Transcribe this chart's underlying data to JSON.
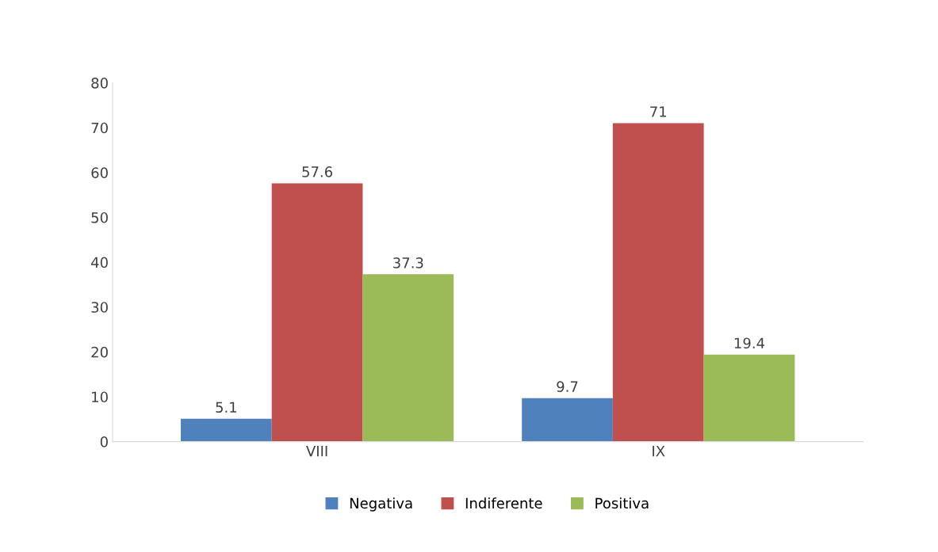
{
  "chart_data": {
    "type": "bar",
    "categories": [
      "VIII",
      "IX"
    ],
    "series": [
      {
        "name": "Negativa",
        "color": "#4f81bd",
        "values": [
          5.1,
          9.7
        ]
      },
      {
        "name": "Indiferente",
        "color": "#c0504d",
        "values": [
          57.6,
          71
        ]
      },
      {
        "name": "Positiva",
        "color": "#9bbb59",
        "values": [
          37.3,
          19.4
        ]
      }
    ],
    "ylim": [
      0,
      80
    ],
    "yticks": [
      0,
      10,
      20,
      30,
      40,
      50,
      60,
      70,
      80
    ],
    "data_labels": true,
    "legend": "bottom",
    "grid": false
  }
}
